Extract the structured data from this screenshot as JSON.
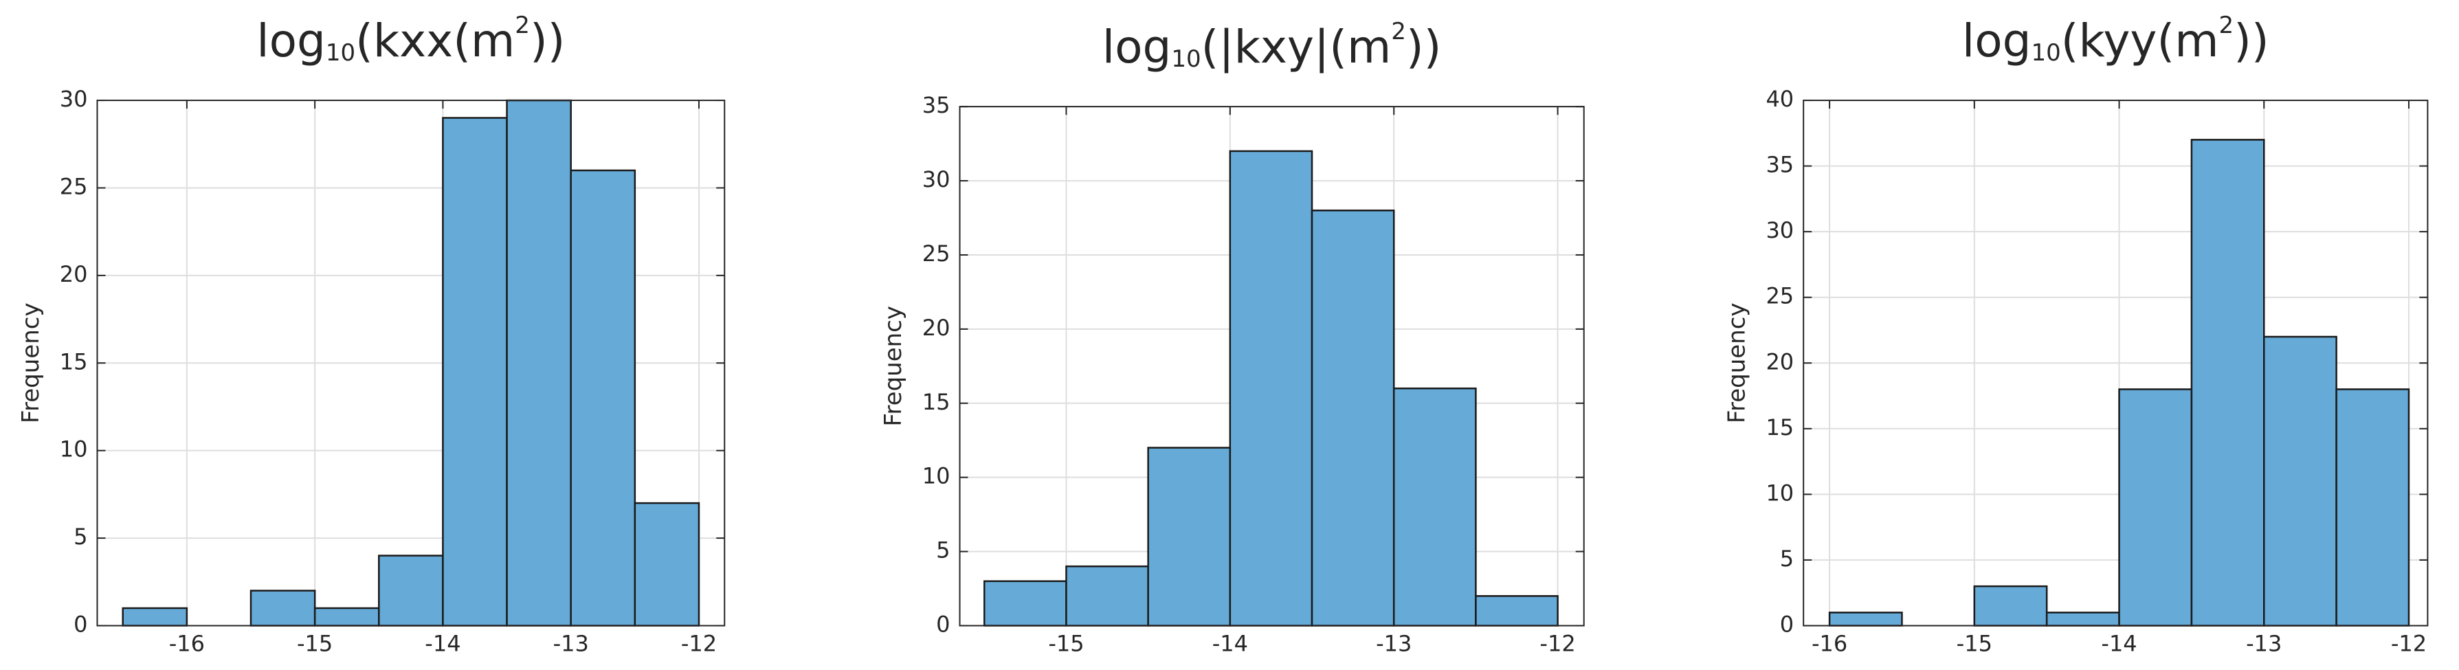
{
  "chart_data": [
    {
      "type": "histogram",
      "title": [
        {
          "text": "log"
        },
        {
          "text": "10",
          "script": "sub"
        },
        {
          "text": "(kxx(m"
        },
        {
          "text": "2",
          "script": "sup"
        },
        {
          "text": "))"
        }
      ],
      "y_label": "Frequency",
      "bins": [
        -16.5,
        -16,
        -15.5,
        -15,
        -14.5,
        -14,
        -13.5,
        -13,
        -12.5,
        -12
      ],
      "counts": [
        1,
        0,
        2,
        1,
        4,
        29,
        30,
        26,
        7
      ],
      "color": "#66aad7",
      "edge_color": "#1a1a1a",
      "xlim": [
        -16.7,
        -11.8
      ],
      "xticks": [
        -16,
        -15,
        -14,
        -13,
        -12
      ],
      "ylim": [
        0,
        30
      ],
      "yticks": [
        0,
        5,
        10,
        15,
        20,
        25,
        30
      ],
      "grid": true
    },
    {
      "type": "histogram",
      "title": [
        {
          "text": "log"
        },
        {
          "text": "10",
          "script": "sub"
        },
        {
          "text": "(|kxy|(m"
        },
        {
          "text": "2",
          "script": "sup"
        },
        {
          "text": "))"
        }
      ],
      "y_label": "Frequency",
      "bins": [
        -15.5,
        -15,
        -14.5,
        -14,
        -13.5,
        -13,
        -12.5,
        -12
      ],
      "counts": [
        3,
        4,
        12,
        32,
        28,
        16,
        2
      ],
      "color": "#66aad7",
      "edge_color": "#1a1a1a",
      "xlim": [
        -15.65,
        -11.84
      ],
      "xticks": [
        -15,
        -14,
        -13,
        -12
      ],
      "ylim": [
        0,
        35
      ],
      "yticks": [
        0,
        5,
        10,
        15,
        20,
        25,
        30,
        35
      ],
      "grid": true
    },
    {
      "type": "histogram",
      "title": [
        {
          "text": "log"
        },
        {
          "text": "10",
          "script": "sub"
        },
        {
          "text": "(kyy(m"
        },
        {
          "text": "2",
          "script": "sup"
        },
        {
          "text": "))"
        }
      ],
      "y_label": "Frequency",
      "bins": [
        -16,
        -15.5,
        -15,
        -14.5,
        -14,
        -13.5,
        -13,
        -12.5,
        -12
      ],
      "counts": [
        1,
        0,
        3,
        1,
        18,
        37,
        22,
        18
      ],
      "color": "#66aad7",
      "edge_color": "#1a1a1a",
      "xlim": [
        -16.18,
        -11.87
      ],
      "xticks": [
        -16,
        -15,
        -14,
        -13,
        -12
      ],
      "ylim": [
        0,
        40
      ],
      "yticks": [
        0,
        5,
        10,
        15,
        20,
        25,
        30,
        35,
        40
      ],
      "grid": true
    }
  ]
}
